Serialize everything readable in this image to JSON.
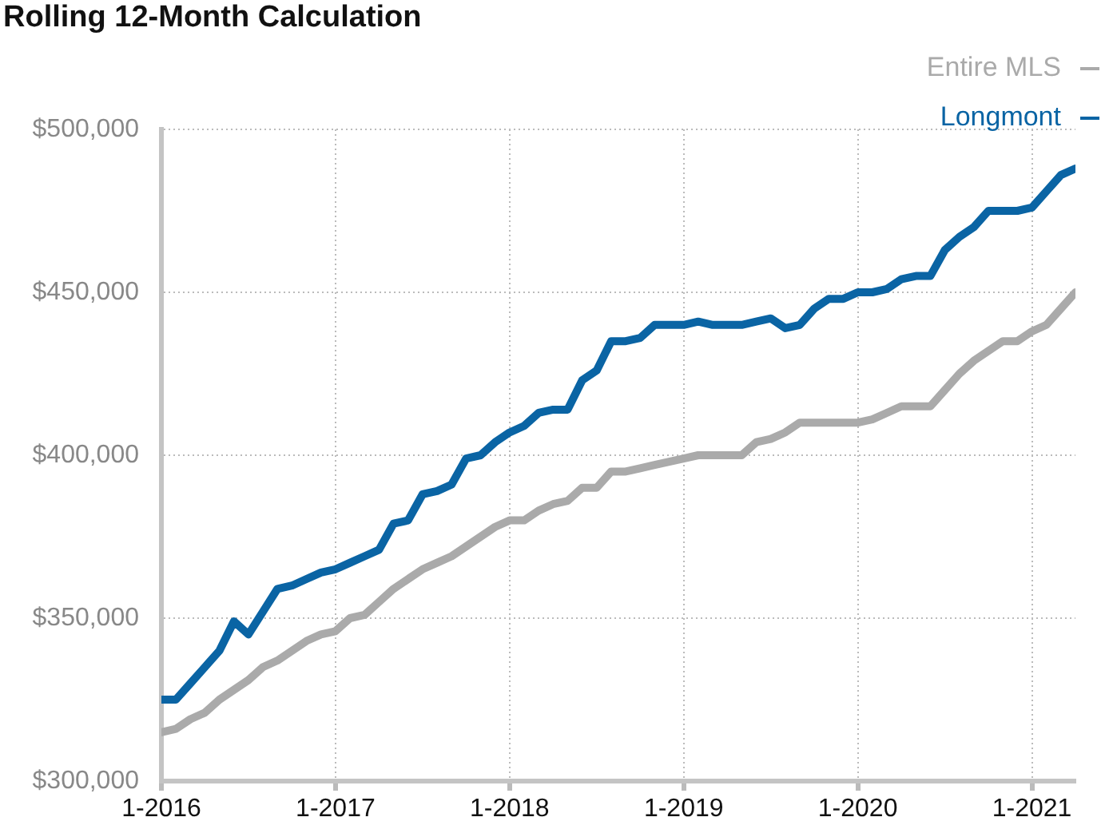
{
  "chart_data": {
    "type": "line",
    "title": "Rolling 12-Month Calculation",
    "legend": "top right",
    "grid": true,
    "marker": "none",
    "line_style": "solid",
    "x": [
      "2016-01",
      "2016-02",
      "2016-03",
      "2016-04",
      "2016-05",
      "2016-06",
      "2016-07",
      "2016-08",
      "2016-09",
      "2016-10",
      "2016-11",
      "2016-12",
      "2017-01",
      "2017-02",
      "2017-03",
      "2017-04",
      "2017-05",
      "2017-06",
      "2017-07",
      "2017-08",
      "2017-09",
      "2017-10",
      "2017-11",
      "2017-12",
      "2018-01",
      "2018-02",
      "2018-03",
      "2018-04",
      "2018-05",
      "2018-06",
      "2018-07",
      "2018-08",
      "2018-09",
      "2018-10",
      "2018-11",
      "2018-12",
      "2019-01",
      "2019-02",
      "2019-03",
      "2019-04",
      "2019-05",
      "2019-06",
      "2019-07",
      "2019-08",
      "2019-09",
      "2019-10",
      "2019-11",
      "2019-12",
      "2020-01",
      "2020-02",
      "2020-03",
      "2020-04",
      "2020-05",
      "2020-06",
      "2020-07",
      "2020-08",
      "2020-09",
      "2020-10",
      "2020-11",
      "2020-12",
      "2021-01",
      "2021-02",
      "2021-03",
      "2021-04"
    ],
    "series": [
      {
        "name": "Entire MLS",
        "color": "#aaaaaa",
        "values": [
          315000,
          316000,
          319000,
          321000,
          325000,
          328000,
          331000,
          335000,
          337000,
          340000,
          343000,
          345000,
          346000,
          350000,
          351000,
          355000,
          359000,
          362000,
          365000,
          367000,
          369000,
          372000,
          375000,
          378000,
          380000,
          380000,
          383000,
          385000,
          386000,
          390000,
          390000,
          395000,
          395000,
          396000,
          397000,
          398000,
          399000,
          400000,
          400000,
          400000,
          400000,
          404000,
          405000,
          407000,
          410000,
          410000,
          410000,
          410000,
          410000,
          411000,
          413000,
          415000,
          415000,
          415000,
          420000,
          425000,
          429000,
          432000,
          435000,
          435000,
          438000,
          440000,
          445000,
          450000
        ]
      },
      {
        "name": "Longmont",
        "color": "#0a64a4",
        "values": [
          325000,
          325000,
          330000,
          335000,
          340000,
          349000,
          345000,
          352000,
          359000,
          360000,
          362000,
          364000,
          365000,
          367000,
          369000,
          371000,
          379000,
          380000,
          388000,
          389000,
          391000,
          399000,
          400000,
          404000,
          407000,
          409000,
          413000,
          414000,
          414000,
          423000,
          426000,
          435000,
          435000,
          436000,
          440000,
          440000,
          440000,
          441000,
          440000,
          440000,
          440000,
          441000,
          442000,
          439000,
          440000,
          445000,
          448000,
          448000,
          450000,
          450000,
          451000,
          454000,
          455000,
          455000,
          463000,
          467000,
          470000,
          475000,
          475000,
          475000,
          476000,
          481000,
          486000,
          488000
        ]
      }
    ],
    "xlim": [
      "2016-01",
      "2021-04"
    ],
    "xticks": [
      {
        "value": "2016-01",
        "label": "1-2016"
      },
      {
        "value": "2017-01",
        "label": "1-2017"
      },
      {
        "value": "2018-01",
        "label": "1-2018"
      },
      {
        "value": "2019-01",
        "label": "1-2019"
      },
      {
        "value": "2020-01",
        "label": "1-2020"
      },
      {
        "value": "2021-01",
        "label": "1-2021"
      }
    ],
    "ylim": [
      300000,
      500000
    ],
    "yticks": [
      {
        "value": 300000,
        "label": "$300,000"
      },
      {
        "value": 350000,
        "label": "$350,000"
      },
      {
        "value": 400000,
        "label": "$400,000"
      },
      {
        "value": 450000,
        "label": "$450,000"
      },
      {
        "value": 500000,
        "label": "$500,000"
      }
    ]
  }
}
